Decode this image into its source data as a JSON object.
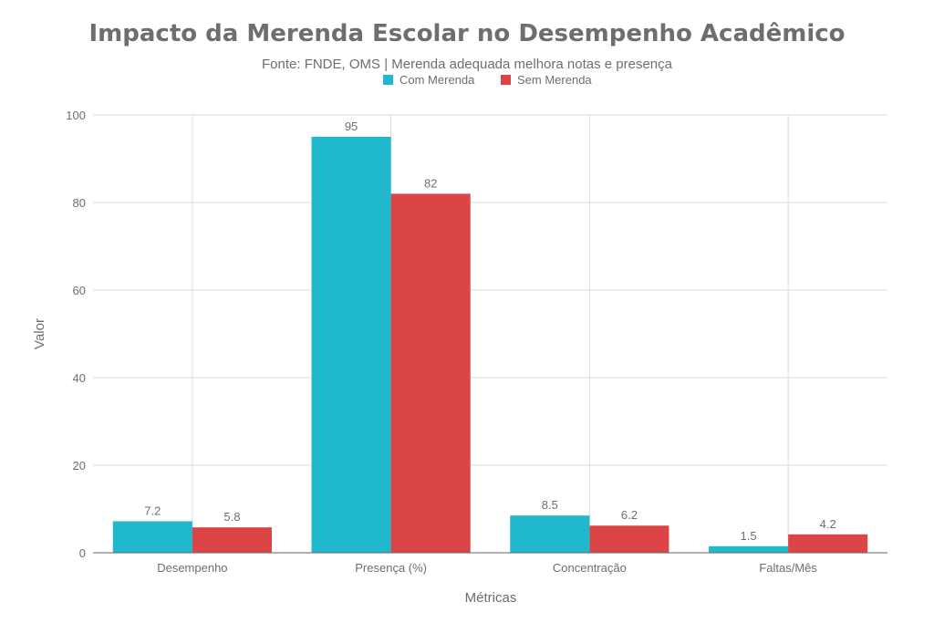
{
  "chart_data": {
    "type": "bar",
    "title": "Impacto da Merenda Escolar no Desempenho Acadêmico",
    "subtitle": "Fonte: FNDE, OMS | Merenda adequada melhora notas e presença",
    "xlabel": "Métricas",
    "ylabel": "Valor",
    "categories": [
      "Desempenho",
      "Presença (%)",
      "Concentração",
      "Faltas/Mês"
    ],
    "series": [
      {
        "name": "Com Merenda",
        "color": "#20b8cd",
        "values": [
          7.2,
          95,
          8.5,
          1.5
        ],
        "labels": [
          "7.2",
          "95",
          "8.5",
          "1.5"
        ]
      },
      {
        "name": "Sem Merenda",
        "color": "#dc4545",
        "values": [
          5.8,
          82,
          6.2,
          4.2
        ],
        "labels": [
          "5.8",
          "82",
          "6.2",
          "4.2"
        ]
      }
    ],
    "ylim": [
      0,
      100
    ],
    "yticks": [
      0,
      20,
      40,
      60,
      80,
      100
    ],
    "ytick_labels": [
      "0",
      "20",
      "40",
      "60",
      "80",
      "100"
    ],
    "grid": true,
    "legend_position": "top-center"
  }
}
